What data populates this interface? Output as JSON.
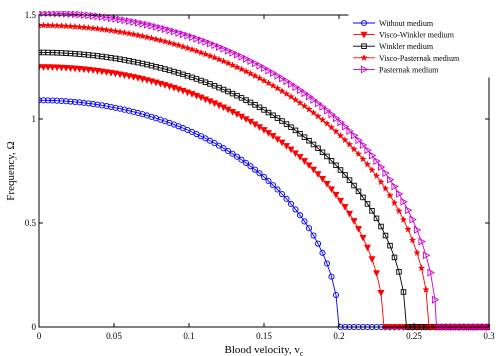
{
  "chart_data": {
    "type": "line",
    "title": "",
    "xlabel": "Blood velocity, v",
    "xlabel_sub": "c",
    "ylabel": "Frequency, Ω",
    "xlim": [
      0,
      0.3
    ],
    "ylim": [
      0,
      1.5
    ],
    "x_ticks": [
      "0",
      "0.05",
      "0.1",
      "0.15",
      "0.2",
      "0.25",
      "0.3"
    ],
    "y_ticks": [
      "0",
      "0.5",
      "1",
      "1.5"
    ],
    "grid": false,
    "legend_position": "top-right",
    "series": [
      {
        "name": "Without medium",
        "color": "#0000ff",
        "marker": "circle",
        "f0": 1.09,
        "vc": 0.2
      },
      {
        "name": "Visco-Winkler medium",
        "color": "#ff0000",
        "marker": "triangle-down",
        "f0": 1.25,
        "vc": 0.23
      },
      {
        "name": "Winkler medium",
        "color": "#000000",
        "marker": "square",
        "f0": 1.32,
        "vc": 0.245
      },
      {
        "name": "Visco-Pasternak medium",
        "color": "#ff0000",
        "marker": "star",
        "f0": 1.45,
        "vc": 0.26
      },
      {
        "name": "Pasternak medium",
        "color": "#cc00cc",
        "marker": "triangle-right",
        "f0": 1.51,
        "vc": 0.265
      }
    ]
  }
}
